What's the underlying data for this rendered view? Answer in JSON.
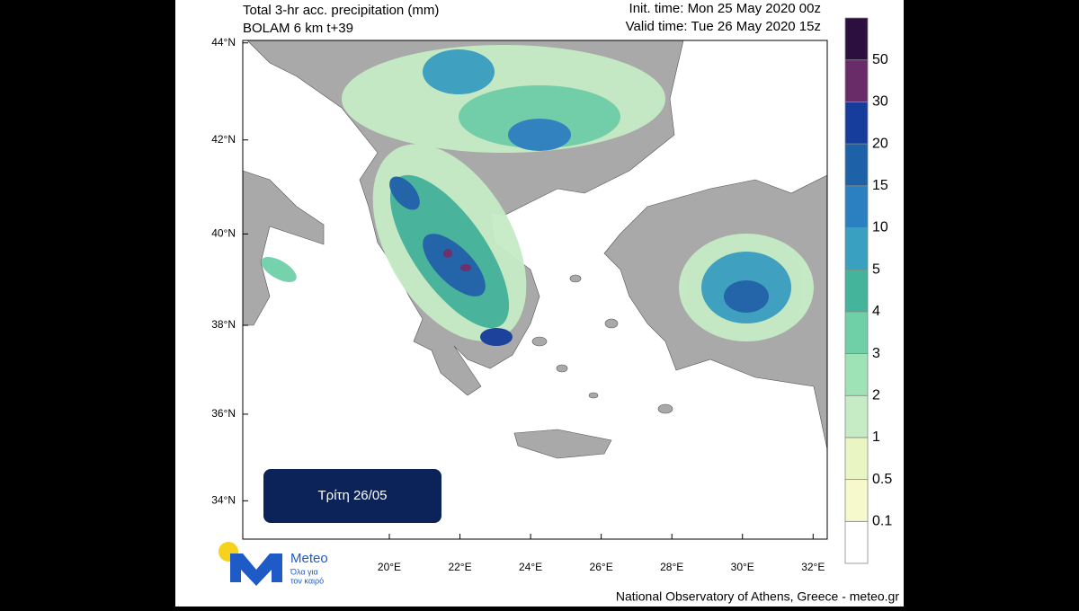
{
  "header": {
    "title": "Total 3-hr acc. precipitation (mm)",
    "subtitle": "BOLAM 6 km t+39",
    "init_time": "Init. time: Mon 25 May 2020 00z",
    "valid_time": "Valid time: Tue 26 May 2020 15z"
  },
  "map": {
    "xlim": [
      15.85,
      32.4
    ],
    "ylim": [
      33.1,
      44.05
    ],
    "projection": "mercator",
    "xticks": [
      {
        "value": 20,
        "label": "20°E"
      },
      {
        "value": 22,
        "label": "22°E"
      },
      {
        "value": 24,
        "label": "24°E"
      },
      {
        "value": 26,
        "label": "26°E"
      },
      {
        "value": 28,
        "label": "28°E"
      },
      {
        "value": 30,
        "label": "30°E"
      },
      {
        "value": 32,
        "label": "32°E"
      }
    ],
    "yticks": [
      {
        "value": 34,
        "label": "34°N"
      },
      {
        "value": 36,
        "label": "36°N"
      },
      {
        "value": 38,
        "label": "38°N"
      },
      {
        "value": 40,
        "label": "40°N"
      },
      {
        "value": 42,
        "label": "42°N"
      },
      {
        "value": 44,
        "label": "44°N"
      }
    ]
  },
  "colorbar": {
    "levels": [
      0.1,
      0.5,
      1,
      2,
      3,
      4,
      5,
      10,
      15,
      20,
      30,
      50
    ],
    "colors": [
      "#ffffff",
      "#f6f9cc",
      "#e9f6c4",
      "#c6ecc5",
      "#9ee3b6",
      "#6fd0a8",
      "#44b49b",
      "#3aa0c2",
      "#2b80c1",
      "#1d62a9",
      "#163d9b",
      "#6a2b69",
      "#2c0f3f"
    ]
  },
  "badge": "Τρίτη 26/05",
  "logo": {
    "name": "Meteo",
    "tagline_1": "Όλα για",
    "tagline_2": "τον καιρό"
  },
  "footer": "National Observatory of Athens, Greece - meteo.gr"
}
